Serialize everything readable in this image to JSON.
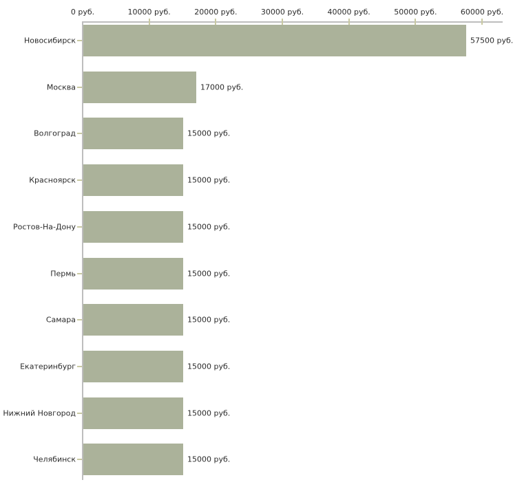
{
  "chart": {
    "colors": {
      "bar": "#abb29a",
      "axis": "#bdbdbd",
      "tick": "#c9c9a2",
      "text": "#2b2b2b",
      "background": "#ffffff"
    }
  },
  "chart_data": {
    "type": "bar",
    "orientation": "horizontal",
    "title": "",
    "xlabel": "",
    "ylabel": "",
    "unit": "руб.",
    "categories": [
      "Новосибирск",
      "Москва",
      "Волгоград",
      "Красноярск",
      "Ростов-На-Дону",
      "Пермь",
      "Самара",
      "Екатеринбург",
      "Нижний Новгород",
      "Челябинск"
    ],
    "values": [
      57500,
      17000,
      15000,
      15000,
      15000,
      15000,
      15000,
      15000,
      15000,
      15000
    ],
    "bar_labels": [
      "57500 руб.",
      "17000 руб.",
      "15000 руб.",
      "15000 руб.",
      "15000 руб.",
      "15000 руб.",
      "15000 руб.",
      "15000 руб.",
      "15000 руб.",
      "15000 руб."
    ],
    "x_ticks": [
      0,
      10000,
      20000,
      30000,
      40000,
      50000,
      60000
    ],
    "x_tick_labels": [
      "0 руб.",
      "10000 руб.",
      "20000 руб.",
      "30000 руб.",
      "40000 руб.",
      "50000 руб.",
      "60000 руб."
    ],
    "xlim": [
      0,
      63000
    ],
    "tick_label_side": "top",
    "grid": false,
    "legend": false
  }
}
